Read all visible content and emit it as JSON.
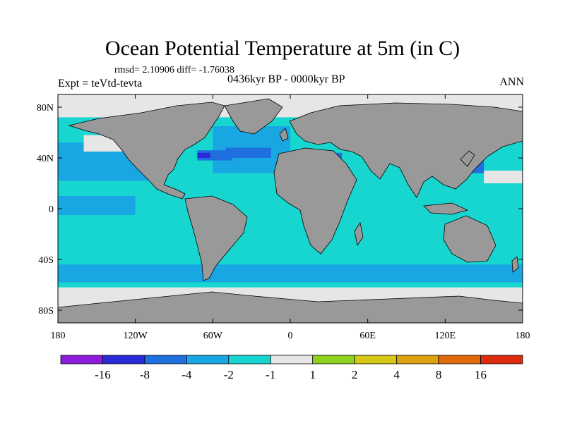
{
  "chart_data": {
    "type": "heatmap",
    "title": "Ocean Potential Temperature at 5m (in C)",
    "stats": "rmsd= 2.10906 diff= -1.76038",
    "experiment": "Expt = teVtd-tevta",
    "period": "0436kyr BP - 0000kyr BP",
    "season": "ANN",
    "x_ticks": [
      "180",
      "120W",
      "60W",
      "0",
      "60E",
      "120E",
      "180"
    ],
    "x_tick_values": [
      -180,
      -120,
      -60,
      0,
      60,
      120,
      180
    ],
    "y_ticks": [
      "80N",
      "40N",
      "0",
      "40S",
      "80S"
    ],
    "y_tick_values": [
      80,
      40,
      0,
      -40,
      -80
    ],
    "xlim": [
      -180,
      180
    ],
    "ylim": [
      -90,
      90
    ],
    "colorbar": {
      "labels": [
        "-16",
        "-8",
        "-4",
        "-2",
        "-1",
        "1",
        "2",
        "4",
        "8",
        "16"
      ],
      "colors": [
        "#8b1cdc",
        "#2a2ad6",
        "#1f6fde",
        "#19a7e3",
        "#17d6cf",
        "#e6e6e6",
        "#8fd21e",
        "#d6c916",
        "#e0a10f",
        "#e26a0c",
        "#dc2c10"
      ]
    },
    "background_color": "#17d6cf",
    "land_color": "#999999",
    "regions": [
      {
        "level": "-2",
        "color": "#19a7e3",
        "lon": [
          -180,
          -120
        ],
        "lat": [
          -5,
          10
        ]
      },
      {
        "level": "-2",
        "color": "#19a7e3",
        "lon": [
          -180,
          -110
        ],
        "lat": [
          22,
          52
        ]
      },
      {
        "level": "-2",
        "color": "#19a7e3",
        "lon": [
          -180,
          180
        ],
        "lat": [
          -58,
          -44
        ]
      },
      {
        "level": "-2",
        "color": "#19a7e3",
        "lon": [
          -60,
          0
        ],
        "lat": [
          28,
          65
        ]
      },
      {
        "level": "-4",
        "color": "#1f6fde",
        "lon": [
          -72,
          -45
        ],
        "lat": [
          38,
          46
        ]
      },
      {
        "level": "-4",
        "color": "#1f6fde",
        "lon": [
          -50,
          -15
        ],
        "lat": [
          40,
          48
        ]
      },
      {
        "level": "-4",
        "color": "#1f6fde",
        "lon": [
          0,
          40
        ],
        "lat": [
          34,
          44
        ]
      },
      {
        "level": "-4",
        "color": "#1f6fde",
        "lon": [
          130,
          150
        ],
        "lat": [
          28,
          45
        ]
      },
      {
        "level": "-8",
        "color": "#2a2ad6",
        "lon": [
          -72,
          -62
        ],
        "lat": [
          40,
          44
        ]
      },
      {
        "level": "1",
        "color": "#e6e6e6",
        "lon": [
          -180,
          180
        ],
        "lat": [
          -90,
          -62
        ]
      },
      {
        "level": "1",
        "color": "#e6e6e6",
        "lon": [
          -180,
          180
        ],
        "lat": [
          72,
          90
        ]
      },
      {
        "level": "1",
        "color": "#e6e6e6",
        "lon": [
          -160,
          -125
        ],
        "lat": [
          45,
          58
        ]
      },
      {
        "level": "1",
        "color": "#e6e6e6",
        "lon": [
          150,
          180
        ],
        "lat": [
          20,
          30
        ]
      }
    ]
  }
}
